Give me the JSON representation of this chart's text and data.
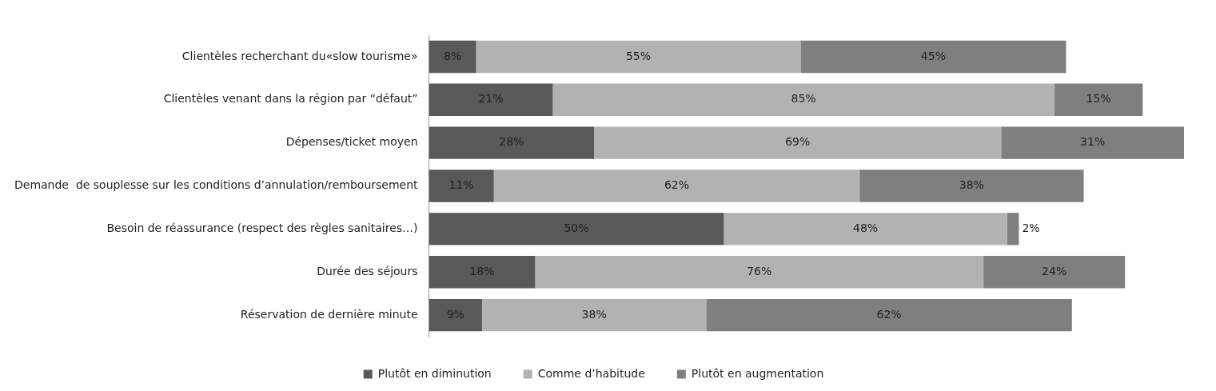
{
  "chart_data": {
    "type": "bar",
    "orientation": "horizontal",
    "stacked": true,
    "tick_labels": "y",
    "legend": "bottom",
    "categories": [
      "Clientèles recherchant du«slow tourisme»",
      "Clientèles venant dans la région par “défaut”",
      "Dépenses/ticket moyen",
      "Demande  de souplesse sur les conditions d’annulation/remboursement",
      "Besoin de réassurance (respect des règles sanitaires…)",
      "Durée des séjours",
      "Réservation de dernière minute"
    ],
    "series": [
      {
        "name": "Plutôt en diminution",
        "color": "#595959",
        "values": [
          8,
          21,
          28,
          11,
          50,
          18,
          9
        ],
        "value_labels": [
          "8%",
          "21%",
          "28%",
          "11%",
          "50%",
          "18%",
          "9%"
        ]
      },
      {
        "name": "Comme d’habitude",
        "color": "#b2b2b2",
        "values": [
          55,
          85,
          69,
          62,
          48,
          76,
          38
        ],
        "value_labels": [
          "55%",
          "85%",
          "69%",
          "62%",
          "48%",
          "76%",
          "38%"
        ]
      },
      {
        "name": "Plutôt en augmentation",
        "color": "#7f7f7f",
        "values": [
          45,
          15,
          31,
          38,
          2,
          24,
          62
        ],
        "value_labels": [
          "45%",
          "15%",
          "31%",
          "38%",
          "2%",
          "24%",
          "62%"
        ]
      }
    ]
  }
}
